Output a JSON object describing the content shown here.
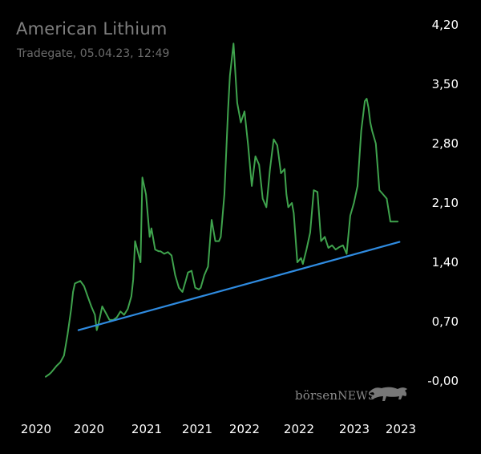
{
  "header": {
    "title": "American Lithium",
    "subtitle": "Tradegate, 05.04.23, 12:49"
  },
  "brand": {
    "name": "börsen",
    "suffix": "NEWS",
    "logo_icon": "bull-icon"
  },
  "colors": {
    "background": "#000000",
    "price_line": "#3fa34d",
    "trend_line": "#2f8be0",
    "axis_text": "#ffffff"
  },
  "chart_data": {
    "type": "line",
    "title": "American Lithium",
    "ylim": [
      0,
      4.2
    ],
    "y_tick_labels": [
      "4,20",
      "3,50",
      "2,80",
      "2,10",
      "1,40",
      "0,70",
      "-0,00"
    ],
    "x_tick_labels": [
      "2020",
      "2020",
      "2021",
      "2021",
      "2022",
      "2022",
      "2023",
      "2023"
    ],
    "grid": false,
    "y_axis_position": "right",
    "series": [
      {
        "name": "",
        "kind": "price",
        "x": [
          0,
          0.01,
          0.015,
          0.03,
          0.04,
          0.05,
          0.06,
          0.07,
          0.075,
          0.08,
          0.095,
          0.105,
          0.115,
          0.125,
          0.135,
          0.14,
          0.145,
          0.155,
          0.165,
          0.175,
          0.185,
          0.195,
          0.205,
          0.215,
          0.225,
          0.235,
          0.24,
          0.245,
          0.26,
          0.265,
          0.27,
          0.275,
          0.285,
          0.29,
          0.3,
          0.31,
          0.315,
          0.325,
          0.335,
          0.345,
          0.355,
          0.365,
          0.375,
          0.385,
          0.39,
          0.4,
          0.41,
          0.42,
          0.425,
          0.435,
          0.445,
          0.455,
          0.465,
          0.475,
          0.48,
          0.49,
          0.5,
          0.505,
          0.515,
          0.525,
          0.535,
          0.545,
          0.555,
          0.565,
          0.575,
          0.585,
          0.595,
          0.605,
          0.615,
          0.625,
          0.635,
          0.645,
          0.655,
          0.66,
          0.665,
          0.675,
          0.68,
          0.69,
          0.7,
          0.705,
          0.715,
          0.725,
          0.735,
          0.745,
          0.755,
          0.765,
          0.775,
          0.785,
          0.795,
          0.805,
          0.815,
          0.825,
          0.835,
          0.845,
          0.855,
          0.865,
          0.875,
          0.88,
          0.885,
          0.89,
          0.895,
          0.905,
          0.915,
          0.925,
          0.935,
          0.945,
          0.955,
          0.965
        ],
        "values": [
          0.05,
          0.08,
          0.1,
          0.18,
          0.22,
          0.3,
          0.55,
          0.85,
          1.05,
          1.15,
          1.18,
          1.12,
          1.0,
          0.88,
          0.78,
          0.6,
          0.68,
          0.88,
          0.8,
          0.72,
          0.72,
          0.75,
          0.82,
          0.78,
          0.85,
          1.0,
          1.2,
          1.65,
          1.4,
          2.4,
          2.3,
          2.2,
          1.7,
          1.8,
          1.55,
          1.53,
          1.53,
          1.5,
          1.52,
          1.48,
          1.25,
          1.1,
          1.05,
          1.2,
          1.28,
          1.3,
          1.1,
          1.08,
          1.1,
          1.25,
          1.35,
          1.9,
          1.65,
          1.65,
          1.7,
          2.2,
          3.2,
          3.6,
          3.98,
          3.28,
          3.05,
          3.18,
          2.78,
          2.3,
          2.65,
          2.55,
          2.15,
          2.05,
          2.5,
          2.85,
          2.78,
          2.45,
          2.5,
          2.2,
          2.05,
          2.1,
          1.98,
          1.4,
          1.45,
          1.38,
          1.55,
          1.75,
          2.25,
          2.23,
          1.65,
          1.7,
          1.57,
          1.6,
          1.55,
          1.58,
          1.6,
          1.5,
          1.95,
          2.1,
          2.3,
          2.95,
          3.3,
          3.33,
          3.22,
          3.05,
          2.95,
          2.8,
          2.25,
          2.2,
          2.15,
          1.88,
          1.88,
          1.88
        ]
      },
      {
        "name": "",
        "kind": "trend",
        "x": [
          0.09,
          0.97
        ],
        "values": [
          0.6,
          1.64
        ]
      }
    ]
  }
}
